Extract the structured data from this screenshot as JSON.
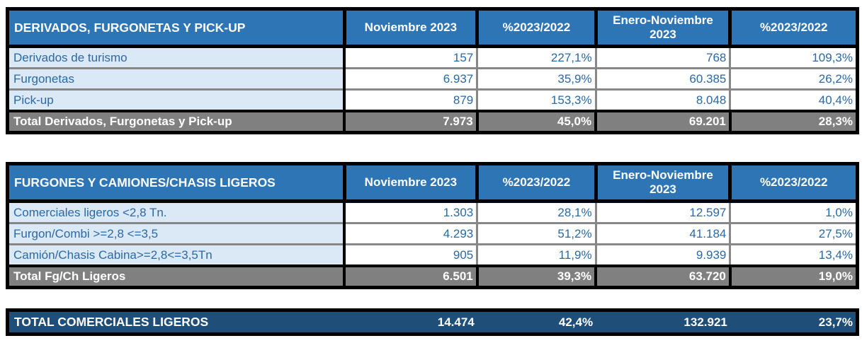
{
  "colors": {
    "header_blue": "#2E75B6",
    "label_cell_blue": "#DBE9F6",
    "data_text_blue": "#2A69A5",
    "total_row_gray": "#808080",
    "grand_total_navy": "#1F4E79",
    "separator_gray": "#878787",
    "border_black": "#000000"
  },
  "chart_data": {
    "type": "table",
    "column_headers": [
      "Noviembre 2023",
      "%2023/2022",
      "Enero-Noviembre 2023",
      "%2023/2022"
    ],
    "tables": [
      {
        "title": "DERIVADOS, FURGONETAS Y PICK-UP",
        "rows": [
          {
            "label": "Derivados de turismo",
            "values": [
              "157",
              "227,1%",
              "768",
              "109,3%"
            ]
          },
          {
            "label": "Furgonetas",
            "values": [
              "6.937",
              "35,9%",
              "60.385",
              "26,2%"
            ]
          },
          {
            "label": "Pick-up",
            "values": [
              "879",
              "153,3%",
              "8.048",
              "40,4%"
            ]
          }
        ],
        "total": {
          "label": "Total Derivados, Furgonetas y Pick-up",
          "values": [
            "7.973",
            "45,0%",
            "69.201",
            "28,3%"
          ]
        }
      },
      {
        "title": "FURGONES Y CAMIONES/CHASIS LIGEROS",
        "rows": [
          {
            "label": "Comerciales ligeros <2,8 Tn.",
            "values": [
              "1.303",
              "28,1%",
              "12.597",
              "1,0%"
            ]
          },
          {
            "label": "Furgon/Combi >=2,8 <=3,5",
            "values": [
              "4.293",
              "51,2%",
              "41.184",
              "27,5%"
            ]
          },
          {
            "label": "Camión/Chasis Cabina>=2,8<=3,5Tn",
            "values": [
              "905",
              "11,9%",
              "9.939",
              "13,4%"
            ]
          }
        ],
        "total": {
          "label": "Total Fg/Ch Ligeros",
          "values": [
            "6.501",
            "39,3%",
            "63.720",
            "19,0%"
          ]
        }
      }
    ],
    "grand_total": {
      "label": "TOTAL COMERCIALES LIGEROS",
      "values": [
        "14.474",
        "42,4%",
        "132.921",
        "23,7%"
      ]
    }
  }
}
